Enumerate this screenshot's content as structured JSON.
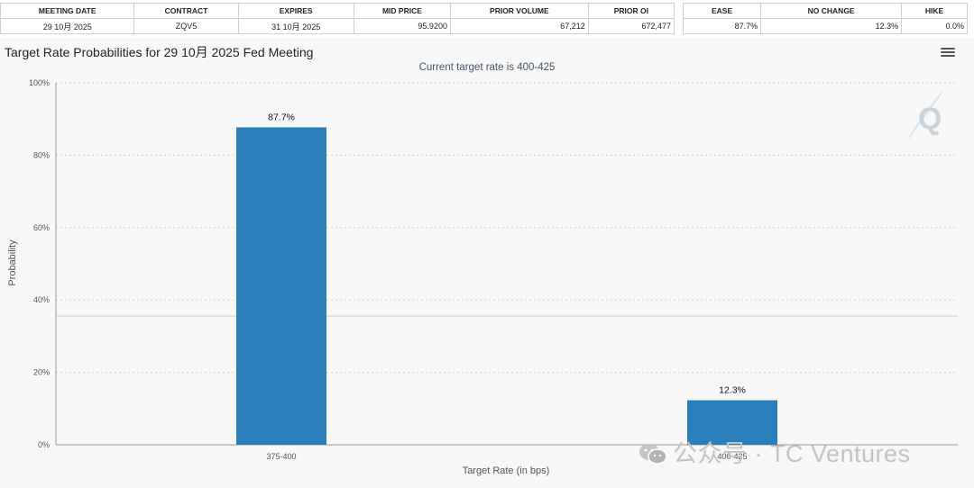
{
  "table_main": {
    "headers": [
      "MEETING DATE",
      "CONTRACT",
      "EXPIRES",
      "MID PRICE",
      "PRIOR VOLUME",
      "PRIOR OI"
    ],
    "row": [
      "29 10月 2025",
      "ZQV5",
      "31 10月 2025",
      "95.9200",
      "67,212",
      "672,477"
    ]
  },
  "table_prob": {
    "headers": [
      "EASE",
      "NO CHANGE",
      "HIKE"
    ],
    "row": [
      "87.7%",
      "12.3%",
      "0.0%"
    ]
  },
  "menu_icon": "hamburger-menu-icon",
  "watermark": {
    "text": "公众号 · TC Ventures",
    "icon": "wechat-icon"
  },
  "brand_icon": "cme-q-logo-icon",
  "chart_data": {
    "type": "bar",
    "title": "Target Rate Probabilities for 29 10月 2025 Fed Meeting",
    "subtitle": "Current target rate is 400-425",
    "categories": [
      "375-400",
      "400-425"
    ],
    "values": [
      87.7,
      12.3
    ],
    "data_labels": [
      "87.7%",
      "12.3%"
    ],
    "xlabel": "Target Rate (in bps)",
    "ylabel": "Probability",
    "ylim": [
      0,
      100
    ],
    "yticks": [
      0,
      20,
      40,
      60,
      80,
      100
    ],
    "ytick_labels": [
      "0%",
      "20%",
      "40%",
      "60%",
      "80%",
      "100%"
    ],
    "grid": true,
    "bar_color": "#2a7fba"
  }
}
